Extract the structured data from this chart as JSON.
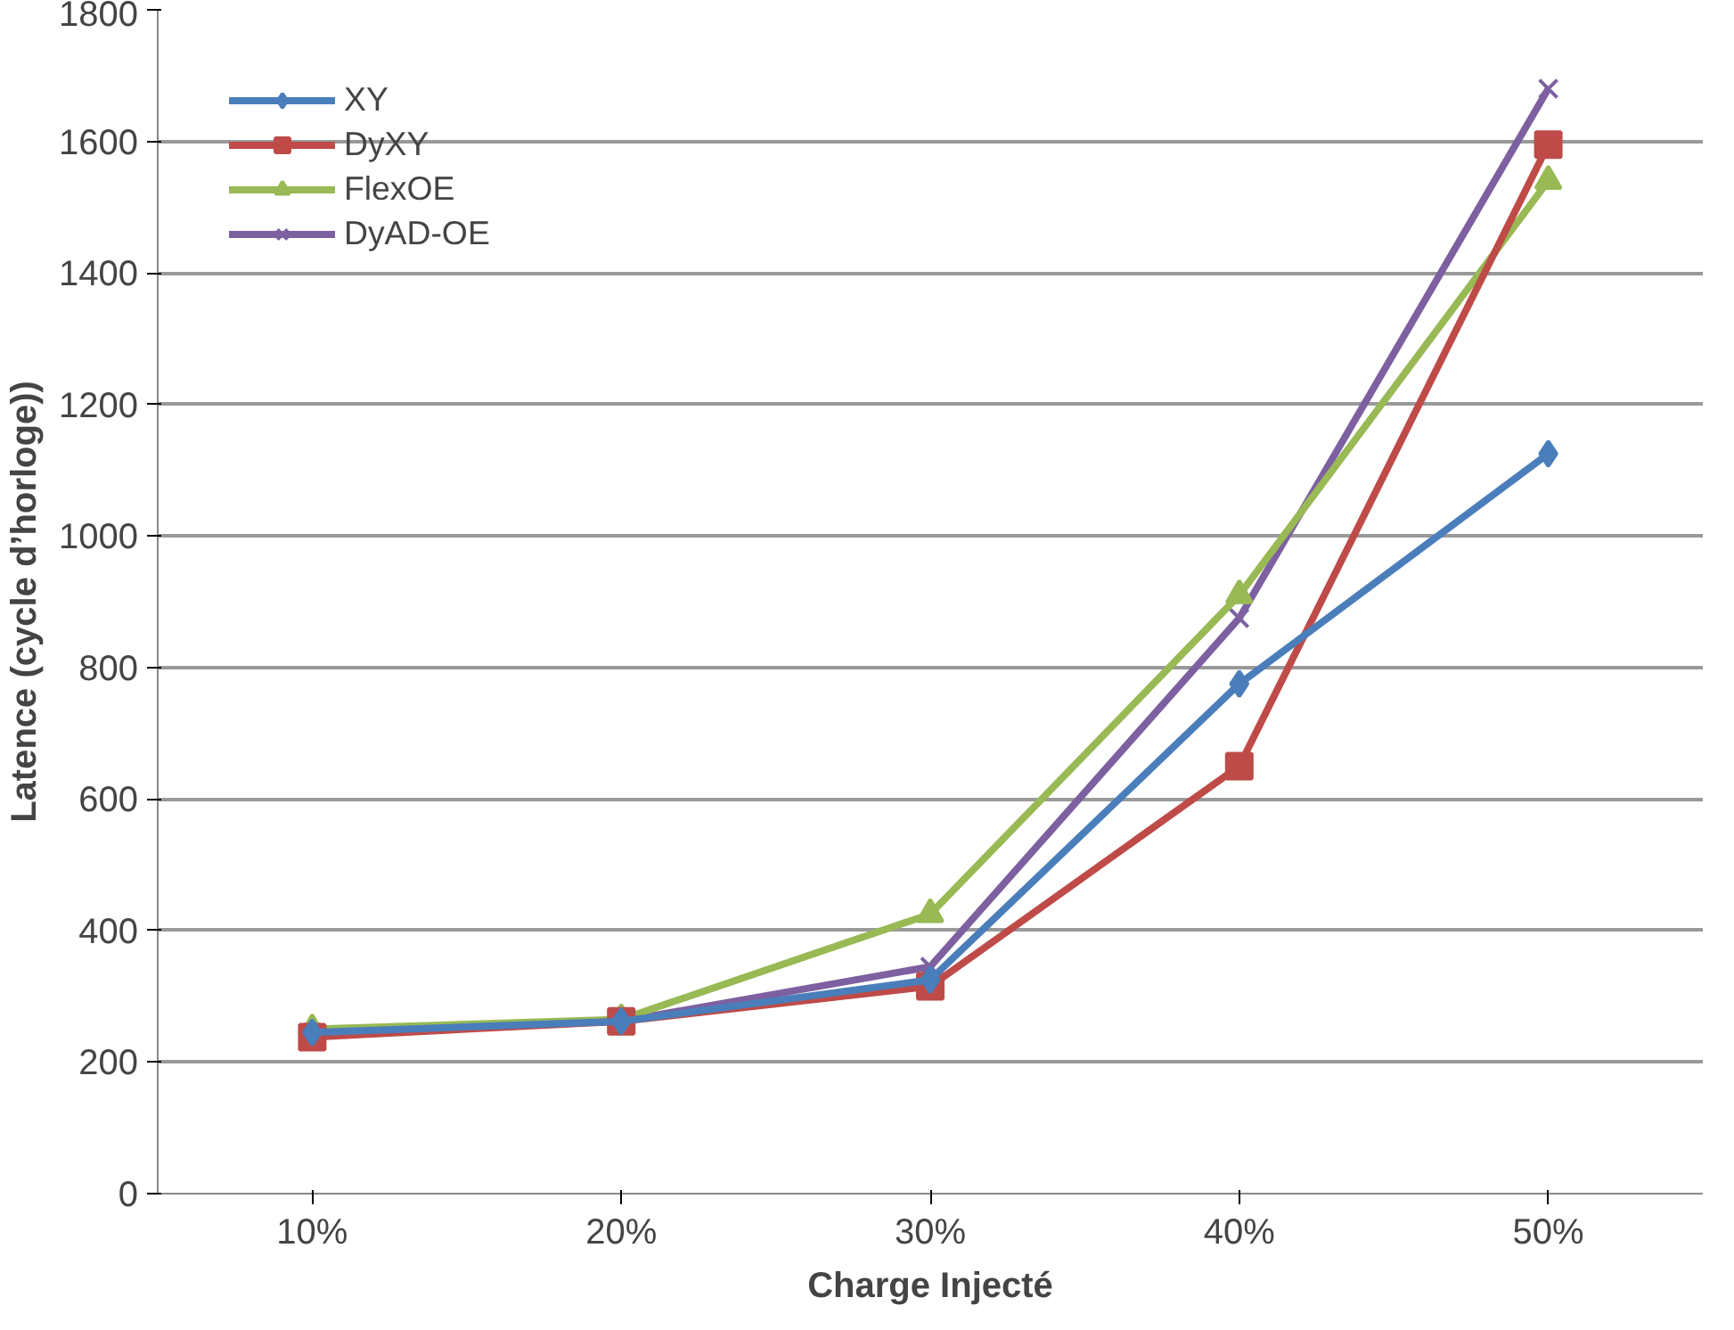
{
  "chart_data": {
    "type": "line",
    "xlabel": "Charge Injecté",
    "ylabel": "Latence (cycle d’horloge))",
    "categories": [
      "10%",
      "20%",
      "30%",
      "40%",
      "50%"
    ],
    "series": [
      {
        "name": "XY",
        "color": "#4a7ebb",
        "marker": "diamond",
        "values": [
          245,
          262,
          325,
          775,
          1125
        ]
      },
      {
        "name": "DyXY",
        "color": "#be4b48",
        "marker": "square",
        "values": [
          238,
          262,
          315,
          650,
          1595
        ]
      },
      {
        "name": "FlexOE",
        "color": "#98b954",
        "marker": "triangle",
        "values": [
          250,
          265,
          425,
          910,
          1540
        ]
      },
      {
        "name": "DyAD-OE",
        "color": "#7d60a0",
        "marker": "x",
        "values": [
          245,
          262,
          345,
          875,
          1680
        ]
      }
    ],
    "ylim": [
      0,
      1800
    ],
    "yticks": [
      0,
      200,
      400,
      600,
      800,
      1000,
      1200,
      1400,
      1600,
      1800
    ],
    "grid": "y",
    "legend": "top left",
    "line_style": "solid"
  }
}
